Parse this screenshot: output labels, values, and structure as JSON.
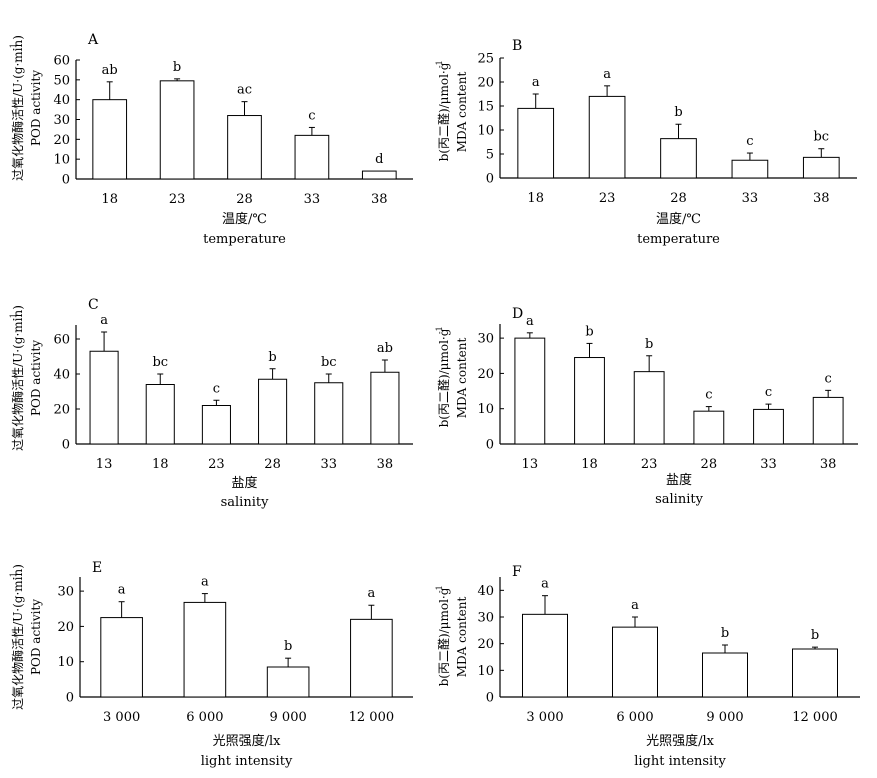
{
  "chart_data": [
    {
      "type": "bar",
      "panel_label": "A",
      "ylabel_zh": "过氧化物酶活性/U·(g·min)",
      "ylabel_sup": "-1",
      "ylabel_en": "POD activity",
      "xlabel_zh": "温度/℃",
      "xlabel_en": "temperature",
      "ylim": [
        0,
        60
      ],
      "yticks": [
        0,
        10,
        20,
        30,
        40,
        50,
        60
      ],
      "categories": [
        "18",
        "23",
        "28",
        "33",
        "38"
      ],
      "values": [
        40,
        49.5,
        32,
        22,
        4
      ],
      "errors": [
        9,
        1,
        7,
        4,
        0
      ],
      "letters": [
        "ab",
        "b",
        "ac",
        "c",
        "d"
      ]
    },
    {
      "type": "bar",
      "panel_label": "B",
      "ylabel_zh": "b(丙二醛)/μmol·g",
      "ylabel_sup": "-1",
      "ylabel_en": "MDA content",
      "xlabel_zh": "温度/℃",
      "xlabel_en": "temperature",
      "ylim": [
        0,
        25
      ],
      "yticks": [
        0,
        5,
        10,
        15,
        20,
        25
      ],
      "categories": [
        "18",
        "23",
        "28",
        "33",
        "38"
      ],
      "values": [
        14.5,
        17,
        8.2,
        3.7,
        4.3
      ],
      "errors": [
        3,
        2.2,
        3,
        1.5,
        1.8
      ],
      "letters": [
        "a",
        "a",
        "b",
        "c",
        "bc"
      ]
    },
    {
      "type": "bar",
      "panel_label": "C",
      "ylabel_zh": "过氧化物酶活性/U·(g·min)",
      "ylabel_sup": "-1",
      "ylabel_en": "POD activity",
      "xlabel_zh": "盐度",
      "xlabel_en": "salinity",
      "ylim": [
        0,
        68
      ],
      "yticks": [
        0,
        20,
        40,
        60
      ],
      "categories": [
        "13",
        "18",
        "23",
        "28",
        "33",
        "38"
      ],
      "values": [
        53,
        34,
        22,
        37,
        35,
        41
      ],
      "errors": [
        11,
        6,
        3,
        6,
        5,
        7
      ],
      "letters": [
        "a",
        "bc",
        "c",
        "b",
        "bc",
        "ab"
      ]
    },
    {
      "type": "bar",
      "panel_label": "D",
      "ylabel_zh": "b(丙二醛)/μmol·g",
      "ylabel_sup": "-1",
      "ylabel_en": "MDA content",
      "xlabel_zh": "盐度",
      "xlabel_en": "salinity",
      "ylim": [
        0,
        34
      ],
      "yticks": [
        0,
        10,
        20,
        30
      ],
      "categories": [
        "13",
        "18",
        "23",
        "28",
        "33",
        "38"
      ],
      "values": [
        30,
        24.5,
        20.5,
        9.3,
        9.8,
        13.2
      ],
      "errors": [
        1.5,
        4,
        4.5,
        1.3,
        1.5,
        2
      ],
      "letters": [
        "a",
        "b",
        "b",
        "c",
        "c",
        "c"
      ]
    },
    {
      "type": "bar",
      "panel_label": "E",
      "ylabel_zh": "过氧化物酶活性/U·(g·min)",
      "ylabel_sup": "-1",
      "ylabel_en": "POD activity",
      "xlabel_zh": "光照强度/lx",
      "xlabel_en": "light intensity",
      "ylim": [
        0,
        34
      ],
      "yticks": [
        0,
        10,
        20,
        30
      ],
      "categories": [
        "3 000",
        "6 000",
        "9 000",
        "12 000"
      ],
      "values": [
        22.5,
        26.8,
        8.5,
        22
      ],
      "errors": [
        4.5,
        2.5,
        2.5,
        4
      ],
      "letters": [
        "a",
        "a",
        "b",
        "a"
      ]
    },
    {
      "type": "bar",
      "panel_label": "F",
      "ylabel_zh": "b(丙二醛)/μmol·g",
      "ylabel_sup": "-1",
      "ylabel_en": "MDA content",
      "xlabel_zh": "光照强度/lx",
      "xlabel_en": "light intensity",
      "ylim": [
        0,
        45
      ],
      "yticks": [
        0,
        10,
        20,
        30,
        40
      ],
      "categories": [
        "3 000",
        "6 000",
        "9 000",
        "12 000"
      ],
      "values": [
        31,
        26.2,
        16.5,
        18
      ],
      "errors": [
        7,
        3.8,
        3,
        0.7
      ],
      "letters": [
        "a",
        "a",
        "b",
        "b"
      ]
    }
  ]
}
